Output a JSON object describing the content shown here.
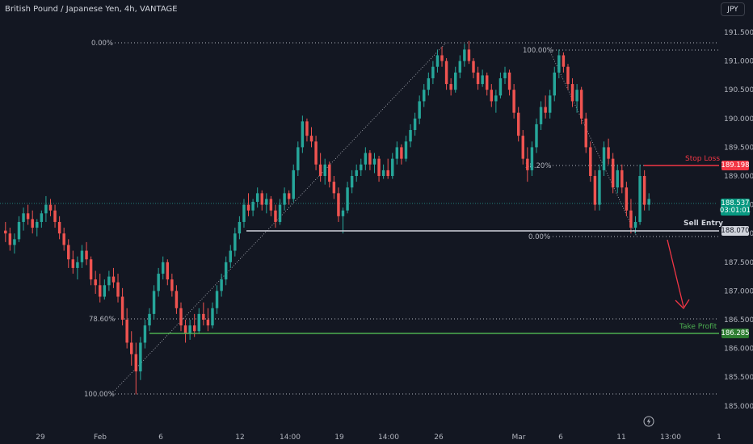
{
  "header": {
    "title": "British Pound / Japanese Yen, 4h, VANTAGE",
    "currency_button": "JPY"
  },
  "price_axis": {
    "ticks": [
      "191.500",
      "191.000",
      "190.500",
      "190.000",
      "189.500",
      "189.000",
      "188.500",
      "188.000",
      "187.500",
      "187.000",
      "186.500",
      "186.000",
      "185.500",
      "185.000"
    ]
  },
  "time_axis": {
    "ticks": [
      "29",
      "Feb",
      "6",
      "12",
      "14:00",
      "19",
      "14:00",
      "26",
      "Mar",
      "6",
      "11",
      "13:00",
      "1"
    ]
  },
  "fib_left": {
    "levels": [
      "0.00%",
      "78.60%",
      "100.00%"
    ]
  },
  "fib_right": {
    "levels": [
      "100.00%",
      "38.20%",
      "0.00%"
    ]
  },
  "tags": {
    "current_price": "188.537",
    "countdown": "03:01:01",
    "stop_loss": "189.198",
    "sell_entry": "188.070",
    "take_profit": "186.285"
  },
  "labels": {
    "stop_loss": "Stop Loss",
    "sell_entry": "Sell Entry",
    "take_profit": "Take Profit"
  },
  "colors": {
    "background": "#131722",
    "up": "#26a69a",
    "down": "#ef5350",
    "stop": "#f23645",
    "take_profit": "#4caf50",
    "sell_entry": "#d1d4dc"
  },
  "chart_data": {
    "type": "candlestick",
    "symbol": "British Pound / Japanese Yen, 4h, VANTAGE",
    "ylim": [
      184.85,
      191.75
    ],
    "ohlc": [
      [
        188.05,
        188.2,
        187.85,
        188.0
      ],
      [
        188.0,
        188.1,
        187.7,
        187.8
      ],
      [
        187.8,
        188.0,
        187.65,
        187.9
      ],
      [
        187.9,
        188.3,
        187.85,
        188.2
      ],
      [
        188.2,
        188.45,
        188.05,
        188.35
      ],
      [
        188.35,
        188.5,
        188.15,
        188.25
      ],
      [
        188.25,
        188.4,
        188.0,
        188.1
      ],
      [
        188.1,
        188.25,
        187.95,
        188.2
      ],
      [
        188.2,
        188.4,
        188.1,
        188.35
      ],
      [
        188.35,
        188.65,
        188.2,
        188.5
      ],
      [
        188.5,
        188.6,
        188.3,
        188.4
      ],
      [
        188.4,
        188.5,
        188.1,
        188.2
      ],
      [
        188.2,
        188.3,
        187.9,
        188.0
      ],
      [
        188.0,
        188.1,
        187.7,
        187.8
      ],
      [
        187.8,
        187.9,
        187.4,
        187.55
      ],
      [
        187.55,
        187.7,
        187.3,
        187.4
      ],
      [
        187.4,
        187.6,
        187.2,
        187.5
      ],
      [
        187.5,
        187.8,
        187.4,
        187.7
      ],
      [
        187.7,
        187.85,
        187.45,
        187.55
      ],
      [
        187.55,
        187.6,
        187.1,
        187.2
      ],
      [
        187.2,
        187.35,
        186.95,
        187.1
      ],
      [
        187.1,
        187.3,
        186.8,
        186.9
      ],
      [
        186.9,
        187.2,
        186.85,
        187.1
      ],
      [
        187.1,
        187.35,
        187.0,
        187.25
      ],
      [
        187.25,
        187.4,
        187.05,
        187.15
      ],
      [
        187.15,
        187.3,
        186.8,
        186.9
      ],
      [
        186.9,
        187.05,
        186.4,
        186.5
      ],
      [
        186.5,
        186.7,
        186.0,
        186.1
      ],
      [
        186.1,
        186.3,
        185.7,
        185.9
      ],
      [
        185.9,
        186.1,
        185.2,
        185.6
      ],
      [
        185.6,
        186.2,
        185.45,
        186.1
      ],
      [
        186.1,
        186.5,
        186.0,
        186.4
      ],
      [
        186.4,
        186.7,
        186.3,
        186.6
      ],
      [
        186.6,
        187.1,
        186.5,
        187.0
      ],
      [
        187.0,
        187.4,
        186.9,
        187.3
      ],
      [
        187.3,
        187.6,
        187.2,
        187.5
      ],
      [
        187.5,
        187.55,
        187.1,
        187.2
      ],
      [
        187.2,
        187.3,
        186.9,
        187.0
      ],
      [
        187.0,
        187.1,
        186.6,
        186.7
      ],
      [
        186.7,
        186.8,
        186.3,
        186.4
      ],
      [
        186.4,
        186.5,
        186.1,
        186.25
      ],
      [
        186.25,
        186.5,
        186.15,
        186.4
      ],
      [
        186.4,
        186.6,
        186.2,
        186.3
      ],
      [
        186.3,
        186.7,
        186.25,
        186.6
      ],
      [
        186.6,
        186.8,
        186.4,
        186.5
      ],
      [
        186.5,
        186.7,
        186.3,
        186.4
      ],
      [
        186.4,
        186.8,
        186.35,
        186.7
      ],
      [
        186.7,
        187.1,
        186.6,
        187.0
      ],
      [
        187.0,
        187.3,
        186.9,
        187.2
      ],
      [
        187.2,
        187.6,
        187.1,
        187.5
      ],
      [
        187.5,
        187.8,
        187.4,
        187.7
      ],
      [
        187.7,
        188.1,
        187.6,
        188.0
      ],
      [
        188.0,
        188.3,
        187.9,
        188.2
      ],
      [
        188.2,
        188.6,
        188.1,
        188.5
      ],
      [
        188.5,
        188.7,
        188.3,
        188.4
      ],
      [
        188.4,
        188.6,
        188.3,
        188.55
      ],
      [
        188.55,
        188.8,
        188.45,
        188.7
      ],
      [
        188.7,
        188.75,
        188.4,
        188.5
      ],
      [
        188.5,
        188.7,
        188.35,
        188.6
      ],
      [
        188.6,
        188.65,
        188.3,
        188.4
      ],
      [
        188.4,
        188.5,
        188.1,
        188.2
      ],
      [
        188.2,
        188.6,
        188.15,
        188.5
      ],
      [
        188.5,
        188.8,
        188.4,
        188.7
      ],
      [
        188.7,
        188.75,
        188.5,
        188.6
      ],
      [
        188.6,
        189.2,
        188.55,
        189.1
      ],
      [
        189.1,
        189.6,
        189.0,
        189.5
      ],
      [
        189.5,
        190.05,
        189.4,
        189.95
      ],
      [
        189.95,
        190.0,
        189.6,
        189.7
      ],
      [
        189.7,
        189.85,
        189.5,
        189.6
      ],
      [
        189.6,
        189.7,
        189.1,
        189.2
      ],
      [
        189.2,
        189.4,
        188.9,
        189.0
      ],
      [
        189.0,
        189.3,
        188.85,
        189.2
      ],
      [
        189.2,
        189.25,
        188.8,
        188.9
      ],
      [
        188.9,
        189.0,
        188.6,
        188.7
      ],
      [
        188.7,
        188.8,
        188.2,
        188.3
      ],
      [
        188.3,
        188.45,
        188.0,
        188.4
      ],
      [
        188.4,
        188.9,
        188.35,
        188.8
      ],
      [
        188.8,
        189.1,
        188.7,
        189.0
      ],
      [
        189.0,
        189.2,
        188.9,
        189.1
      ],
      [
        189.1,
        189.3,
        189.0,
        189.2
      ],
      [
        189.2,
        189.5,
        189.1,
        189.4
      ],
      [
        189.4,
        189.45,
        189.1,
        189.2
      ],
      [
        189.2,
        189.4,
        189.05,
        189.3
      ],
      [
        189.3,
        189.35,
        188.9,
        189.0
      ],
      [
        189.0,
        189.2,
        188.95,
        189.1
      ],
      [
        189.1,
        189.3,
        188.95,
        189.0
      ],
      [
        189.0,
        189.4,
        188.95,
        189.3
      ],
      [
        189.3,
        189.6,
        189.2,
        189.5
      ],
      [
        189.5,
        189.55,
        189.2,
        189.3
      ],
      [
        189.3,
        189.7,
        189.25,
        189.6
      ],
      [
        189.6,
        189.9,
        189.5,
        189.8
      ],
      [
        189.8,
        190.1,
        189.7,
        190.0
      ],
      [
        190.0,
        190.4,
        189.9,
        190.3
      ],
      [
        190.3,
        190.6,
        190.2,
        190.5
      ],
      [
        190.5,
        190.8,
        190.4,
        190.7
      ],
      [
        190.7,
        191.0,
        190.6,
        190.9
      ],
      [
        190.9,
        191.2,
        190.8,
        191.1
      ],
      [
        191.1,
        191.25,
        190.9,
        191.0
      ],
      [
        191.0,
        191.05,
        190.5,
        190.6
      ],
      [
        190.6,
        190.7,
        190.4,
        190.5
      ],
      [
        190.5,
        190.9,
        190.45,
        190.8
      ],
      [
        190.8,
        191.1,
        190.7,
        191.0
      ],
      [
        191.0,
        191.3,
        190.9,
        191.2
      ],
      [
        191.2,
        191.35,
        190.95,
        191.0
      ],
      [
        191.0,
        191.05,
        190.7,
        190.8
      ],
      [
        190.8,
        190.9,
        190.5,
        190.6
      ],
      [
        190.6,
        190.85,
        190.55,
        190.75
      ],
      [
        190.75,
        190.8,
        190.4,
        190.5
      ],
      [
        190.5,
        190.6,
        190.2,
        190.3
      ],
      [
        190.3,
        190.5,
        190.1,
        190.4
      ],
      [
        190.4,
        190.8,
        190.35,
        190.7
      ],
      [
        190.7,
        190.9,
        190.6,
        190.8
      ],
      [
        190.8,
        190.85,
        190.4,
        190.5
      ],
      [
        190.5,
        190.6,
        190.0,
        190.1
      ],
      [
        190.1,
        190.2,
        189.6,
        189.7
      ],
      [
        189.7,
        189.8,
        189.2,
        189.3
      ],
      [
        189.3,
        189.5,
        188.9,
        189.1
      ],
      [
        189.1,
        189.6,
        189.0,
        189.5
      ],
      [
        189.5,
        190.0,
        189.4,
        189.9
      ],
      [
        189.9,
        190.3,
        189.8,
        190.2
      ],
      [
        190.2,
        190.4,
        190.0,
        190.1
      ],
      [
        190.1,
        190.5,
        190.0,
        190.4
      ],
      [
        190.4,
        190.9,
        190.3,
        190.8
      ],
      [
        190.8,
        191.2,
        190.7,
        191.1
      ],
      [
        191.1,
        191.15,
        190.8,
        190.9
      ],
      [
        190.9,
        190.95,
        190.5,
        190.6
      ],
      [
        190.6,
        190.7,
        190.2,
        190.3
      ],
      [
        190.3,
        190.6,
        190.1,
        190.5
      ],
      [
        190.5,
        190.55,
        189.9,
        190.0
      ],
      [
        190.0,
        190.1,
        189.4,
        189.5
      ],
      [
        189.5,
        189.6,
        188.9,
        189.0
      ],
      [
        189.0,
        189.1,
        188.4,
        188.5
      ],
      [
        188.5,
        189.2,
        188.4,
        189.1
      ],
      [
        189.1,
        189.6,
        189.0,
        189.5
      ],
      [
        189.5,
        189.65,
        189.2,
        189.3
      ],
      [
        189.3,
        189.4,
        188.7,
        188.8
      ],
      [
        188.8,
        189.2,
        188.7,
        189.1
      ],
      [
        189.1,
        189.2,
        188.7,
        188.8
      ],
      [
        188.8,
        188.9,
        188.3,
        188.4
      ],
      [
        188.4,
        188.6,
        188.0,
        188.1
      ],
      [
        188.1,
        188.3,
        188.0,
        188.2
      ],
      [
        188.2,
        189.2,
        188.15,
        189.0
      ],
      [
        189.0,
        189.1,
        188.4,
        188.5
      ],
      [
        188.5,
        188.7,
        188.4,
        188.6
      ]
    ]
  }
}
